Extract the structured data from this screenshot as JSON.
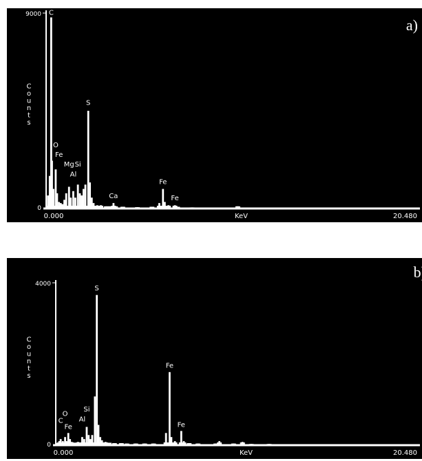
{
  "chart_data": [
    {
      "type": "bar",
      "panel_label": "a)",
      "xlabel": "KeV",
      "ylabel": "Counts",
      "xlim": [
        0,
        20.48
      ],
      "ylim": [
        0,
        9000
      ],
      "x_tick_labels": [
        "0.000",
        "20.480"
      ],
      "y_tick_labels": [
        "9000",
        "0"
      ],
      "series": [
        {
          "values": [
            [
              0.1,
              600
            ],
            [
              0.2,
              1500
            ],
            [
              0.277,
              8800
            ],
            [
              0.32,
              2200
            ],
            [
              0.4,
              900
            ],
            [
              0.525,
              1800
            ],
            [
              0.6,
              700
            ],
            [
              0.7,
              300
            ],
            [
              0.8,
              250
            ],
            [
              0.9,
              200
            ],
            [
              1.0,
              400
            ],
            [
              1.1,
              700
            ],
            [
              1.254,
              1000
            ],
            [
              1.35,
              500
            ],
            [
              1.487,
              800
            ],
            [
              1.6,
              500
            ],
            [
              1.74,
              1100
            ],
            [
              1.85,
              700
            ],
            [
              1.95,
              600
            ],
            [
              2.05,
              900
            ],
            [
              2.15,
              1100
            ],
            [
              2.308,
              4500
            ],
            [
              2.4,
              1200
            ],
            [
              2.5,
              500
            ],
            [
              2.6,
              250
            ],
            [
              2.8,
              150
            ],
            [
              3.0,
              150
            ],
            [
              3.3,
              100
            ],
            [
              3.5,
              100
            ],
            [
              3.691,
              250
            ],
            [
              3.8,
              100
            ],
            [
              4.2,
              80
            ],
            [
              5.0,
              60
            ],
            [
              5.8,
              80
            ],
            [
              6.2,
              250
            ],
            [
              6.403,
              900
            ],
            [
              6.5,
              300
            ],
            [
              6.7,
              150
            ],
            [
              7.057,
              150
            ],
            [
              7.2,
              80
            ],
            [
              8.0,
              50
            ],
            [
              9.0,
              40
            ],
            [
              10.0,
              40
            ],
            [
              10.5,
              100
            ],
            [
              11.0,
              40
            ],
            [
              12.0,
              30
            ],
            [
              14.0,
              30
            ],
            [
              16.0,
              20
            ],
            [
              18.0,
              20
            ]
          ]
        }
      ],
      "annotations": [
        {
          "text": "C",
          "x": 0.277,
          "y": 8800
        },
        {
          "text": "O",
          "x": 0.525,
          "y": 2700
        },
        {
          "text": "Fe",
          "x": 0.705,
          "y": 2250
        },
        {
          "text": "Mg",
          "x": 1.254,
          "y": 1800
        },
        {
          "text": "Si",
          "x": 1.74,
          "y": 1800
        },
        {
          "text": "Al",
          "x": 1.487,
          "y": 1350
        },
        {
          "text": "S",
          "x": 2.308,
          "y": 4650
        },
        {
          "text": "Ca",
          "x": 3.691,
          "y": 350
        },
        {
          "text": "Fe",
          "x": 6.403,
          "y": 1000
        },
        {
          "text": "Fe",
          "x": 7.057,
          "y": 250
        }
      ]
    },
    {
      "type": "bar",
      "panel_label": "b)",
      "xlabel": "KeV",
      "ylabel": "Counts",
      "xlim": [
        0,
        20.48
      ],
      "ylim": [
        0,
        4000
      ],
      "x_tick_labels": [
        "0.000",
        "20.480"
      ],
      "y_tick_labels": [
        "4000",
        "0"
      ],
      "series": [
        {
          "values": [
            [
              0.1,
              50
            ],
            [
              0.2,
              100
            ],
            [
              0.277,
              150
            ],
            [
              0.4,
              100
            ],
            [
              0.525,
              200
            ],
            [
              0.6,
              100
            ],
            [
              0.705,
              300
            ],
            [
              0.8,
              150
            ],
            [
              0.9,
              80
            ],
            [
              1.0,
              60
            ],
            [
              1.1,
              60
            ],
            [
              1.254,
              80
            ],
            [
              1.35,
              60
            ],
            [
              1.487,
              200
            ],
            [
              1.6,
              150
            ],
            [
              1.74,
              450
            ],
            [
              1.85,
              250
            ],
            [
              1.95,
              150
            ],
            [
              2.05,
              250
            ],
            [
              2.2,
              1200
            ],
            [
              2.308,
              3700
            ],
            [
              2.4,
              500
            ],
            [
              2.5,
              200
            ],
            [
              2.6,
              120
            ],
            [
              2.8,
              80
            ],
            [
              3.0,
              60
            ],
            [
              3.3,
              50
            ],
            [
              3.69,
              50
            ],
            [
              4.0,
              40
            ],
            [
              4.5,
              40
            ],
            [
              5.0,
              40
            ],
            [
              5.5,
              40
            ],
            [
              6.2,
              300
            ],
            [
              6.403,
              1800
            ],
            [
              6.5,
              200
            ],
            [
              6.7,
              100
            ],
            [
              7.057,
              350
            ],
            [
              7.2,
              100
            ],
            [
              7.5,
              50
            ],
            [
              8.0,
              40
            ],
            [
              9.0,
              40
            ],
            [
              9.2,
              100
            ],
            [
              10.0,
              40
            ],
            [
              10.5,
              80
            ],
            [
              11.0,
              30
            ],
            [
              12.0,
              30
            ],
            [
              14.0,
              20
            ],
            [
              16.0,
              20
            ],
            [
              18.0,
              20
            ]
          ]
        }
      ],
      "annotations": [
        {
          "text": "C",
          "x": 0.277,
          "y": 480
        },
        {
          "text": "O",
          "x": 0.525,
          "y": 650
        },
        {
          "text": "Fe",
          "x": 0.705,
          "y": 330
        },
        {
          "text": "Al",
          "x": 1.487,
          "y": 520
        },
        {
          "text": "Si",
          "x": 1.74,
          "y": 760
        },
        {
          "text": "S",
          "x": 2.308,
          "y": 3750
        },
        {
          "text": "Fe",
          "x": 6.403,
          "y": 1840
        },
        {
          "text": "Fe",
          "x": 7.057,
          "y": 380
        }
      ]
    }
  ]
}
